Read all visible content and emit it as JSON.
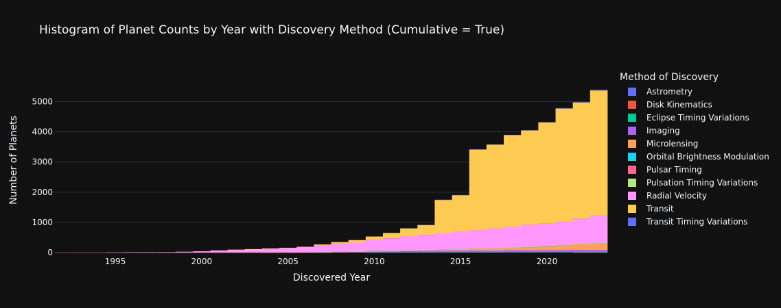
{
  "chart_data": {
    "type": "area",
    "title": "Histogram of Planet Counts by Year with Discovery Method (Cumulative = True)",
    "xlabel": "Discovered Year",
    "ylabel": "Number of Planets",
    "xlim": [
      1992,
      2023
    ],
    "ylim": [
      0,
      5760
    ],
    "xticks": [
      "1995",
      "2000",
      "2005",
      "2010",
      "2015",
      "2020"
    ],
    "yticks": [
      "0",
      "1000",
      "2000",
      "3000",
      "4000",
      "5000"
    ],
    "grid": true,
    "legend_title": "Method of Discovery",
    "legend_position": "right",
    "x": [
      1992,
      1993,
      1994,
      1995,
      1996,
      1997,
      1998,
      1999,
      2000,
      2001,
      2002,
      2003,
      2004,
      2005,
      2006,
      2007,
      2008,
      2009,
      2010,
      2011,
      2012,
      2013,
      2014,
      2015,
      2016,
      2017,
      2018,
      2019,
      2020,
      2021,
      2022,
      2023
    ],
    "series": [
      {
        "name": "Astrometry",
        "color": "#636efa",
        "values": [
          0,
          0,
          0,
          0,
          0,
          0,
          0,
          0,
          0,
          0,
          0,
          0,
          0,
          0,
          0,
          0,
          0,
          0,
          0,
          0,
          0,
          0,
          0,
          0,
          0,
          0,
          0,
          0,
          0,
          0,
          0,
          2
        ]
      },
      {
        "name": "Disk Kinematics",
        "color": "#ef553b",
        "values": [
          0,
          0,
          0,
          0,
          0,
          0,
          0,
          0,
          0,
          0,
          0,
          0,
          0,
          0,
          0,
          0,
          0,
          0,
          0,
          0,
          0,
          0,
          0,
          0,
          0,
          0,
          0,
          0,
          0,
          0,
          1,
          1
        ]
      },
      {
        "name": "Eclipse Timing Variations",
        "color": "#00cc96",
        "values": [
          0,
          0,
          0,
          0,
          0,
          0,
          0,
          0,
          0,
          0,
          0,
          0,
          0,
          0,
          0,
          0,
          0,
          0,
          3,
          5,
          8,
          9,
          10,
          11,
          12,
          12,
          14,
          14,
          15,
          16,
          17,
          17
        ]
      },
      {
        "name": "Imaging",
        "color": "#ab63fa",
        "values": [
          0,
          0,
          0,
          0,
          0,
          0,
          0,
          0,
          0,
          0,
          0,
          0,
          1,
          2,
          4,
          6,
          14,
          19,
          26,
          28,
          33,
          40,
          45,
          48,
          52,
          55,
          58,
          60,
          62,
          66,
          69,
          70
        ]
      },
      {
        "name": "Microlensing",
        "color": "#ffa15a",
        "values": [
          0,
          0,
          0,
          0,
          0,
          0,
          0,
          0,
          0,
          0,
          0,
          0,
          1,
          2,
          4,
          5,
          9,
          11,
          15,
          17,
          25,
          30,
          34,
          44,
          59,
          71,
          85,
          106,
          125,
          146,
          190,
          210
        ]
      },
      {
        "name": "Orbital Brightness Modulation",
        "color": "#19d3f3",
        "values": [
          0,
          0,
          0,
          0,
          0,
          0,
          0,
          0,
          0,
          0,
          0,
          0,
          0,
          0,
          0,
          0,
          0,
          0,
          0,
          2,
          2,
          2,
          2,
          2,
          3,
          3,
          4,
          6,
          8,
          9,
          9,
          9
        ]
      },
      {
        "name": "Pulsar Timing",
        "color": "#ff6692",
        "values": [
          2,
          3,
          3,
          3,
          3,
          3,
          3,
          3,
          3,
          3,
          3,
          4,
          4,
          4,
          4,
          4,
          4,
          4,
          4,
          5,
          5,
          5,
          5,
          5,
          6,
          6,
          6,
          7,
          7,
          7,
          7,
          7
        ]
      },
      {
        "name": "Pulsation Timing Variations",
        "color": "#b6e880",
        "values": [
          0,
          0,
          0,
          0,
          0,
          0,
          0,
          0,
          0,
          0,
          0,
          0,
          0,
          0,
          0,
          1,
          1,
          1,
          1,
          1,
          1,
          1,
          1,
          1,
          1,
          1,
          1,
          1,
          1,
          1,
          2,
          2
        ]
      },
      {
        "name": "Radial Velocity",
        "color": "#ff97ff",
        "values": [
          0,
          0,
          0,
          1,
          7,
          8,
          14,
          26,
          40,
          69,
          92,
          110,
          130,
          148,
          170,
          220,
          262,
          293,
          373,
          413,
          460,
          499,
          538,
          580,
          606,
          647,
          681,
          720,
          737,
          776,
          820,
          900
        ]
      },
      {
        "name": "Transit",
        "color": "#fecb52",
        "values": [
          0,
          0,
          0,
          0,
          0,
          0,
          0,
          0,
          0,
          0,
          1,
          1,
          1,
          3,
          10,
          33,
          57,
          85,
          110,
          183,
          272,
          330,
          1112,
          1210,
          2673,
          2778,
          3040,
          3130,
          3353,
          3748,
          3850,
          4150
        ]
      },
      {
        "name": "Transit Timing Variations",
        "color": "#636efa",
        "values": [
          0,
          0,
          0,
          0,
          0,
          0,
          0,
          0,
          0,
          0,
          0,
          0,
          0,
          0,
          0,
          0,
          0,
          0,
          0,
          1,
          1,
          2,
          5,
          8,
          10,
          11,
          13,
          14,
          16,
          19,
          23,
          27
        ]
      }
    ]
  }
}
